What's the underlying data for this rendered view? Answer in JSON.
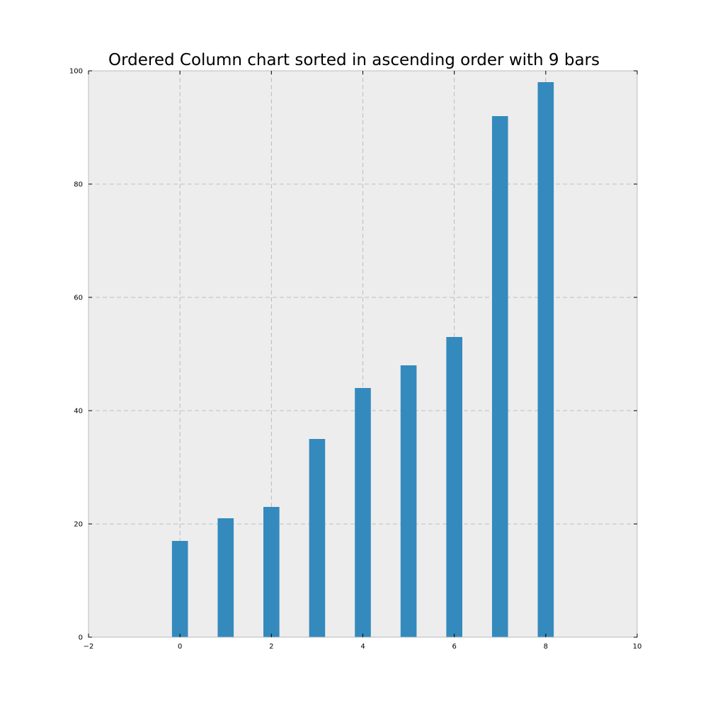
{
  "chart_data": {
    "type": "bar",
    "title": "Ordered Column chart sorted in ascending order with 9 bars",
    "xlabel": "",
    "ylabel": "",
    "x": [
      0,
      1,
      2,
      3,
      4,
      5,
      6,
      7,
      8
    ],
    "values": [
      17,
      21,
      23,
      35,
      44,
      48,
      53,
      92,
      98
    ],
    "bar_width": 0.35,
    "xlim": [
      -2,
      10
    ],
    "ylim": [
      0,
      100
    ],
    "xticks": [
      -2,
      0,
      2,
      4,
      6,
      8,
      10
    ],
    "xtick_labels": [
      "−2",
      "0",
      "2",
      "4",
      "6",
      "8",
      "10"
    ],
    "yticks": [
      0,
      20,
      40,
      60,
      80,
      100
    ],
    "ytick_labels": [
      "0",
      "20",
      "40",
      "60",
      "80",
      "100"
    ],
    "grid": true,
    "legend": "none",
    "colors": {
      "bar": "#348ABD",
      "plot_background": "#EDEDED",
      "grid": "#B0B0B0",
      "axes_edge": "#BCBCBC"
    }
  }
}
